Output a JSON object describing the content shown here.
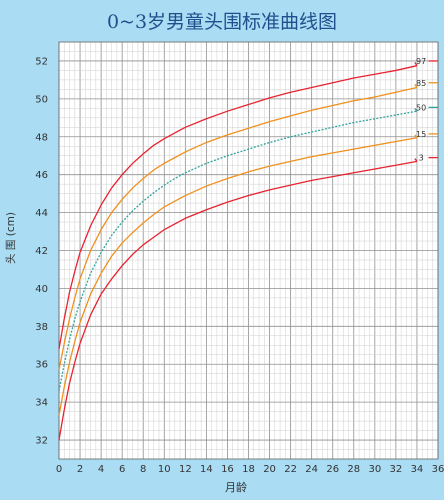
{
  "chart_data": {
    "type": "line",
    "title": "0~3岁男童头围标准曲线图",
    "xlabel": "月龄",
    "ylabel": "头 围 (cm)",
    "xlim": [
      0,
      36
    ],
    "ylim": [
      31,
      53
    ],
    "x_ticks": [
      0,
      2,
      4,
      6,
      8,
      10,
      12,
      14,
      16,
      18,
      20,
      22,
      24,
      26,
      28,
      30,
      32,
      34,
      36
    ],
    "y_ticks": [
      32,
      34,
      36,
      38,
      40,
      42,
      44,
      46,
      48,
      50,
      52
    ],
    "grid": true,
    "colors": {
      "background": "#aadcf4",
      "plot": "#ffffff",
      "title": "#1f4f8c",
      "axis_text": "#333333",
      "grid_minor": "#cfcfcf",
      "grid_major": "#8f8f8f"
    },
    "x": [
      0,
      0.5,
      1,
      1.5,
      2,
      3,
      4,
      5,
      6,
      7,
      8,
      9,
      10,
      11,
      12,
      14,
      16,
      18,
      20,
      22,
      24,
      26,
      28,
      30,
      32,
      34,
      36
    ],
    "series": [
      {
        "name": "97",
        "color": "#e8232f",
        "values": [
          36.8,
          38.4,
          39.8,
          40.9,
          41.9,
          43.3,
          44.4,
          45.3,
          46.0,
          46.6,
          47.1,
          47.55,
          47.9,
          48.2,
          48.5,
          48.95,
          49.35,
          49.7,
          50.05,
          50.35,
          50.6,
          50.85,
          51.1,
          51.3,
          51.5,
          51.75,
          52.0
        ]
      },
      {
        "name": "85",
        "color": "#f0901e",
        "values": [
          35.7,
          37.1,
          38.4,
          39.5,
          40.5,
          42.0,
          43.1,
          44.0,
          44.7,
          45.3,
          45.8,
          46.25,
          46.6,
          46.9,
          47.2,
          47.7,
          48.1,
          48.45,
          48.8,
          49.1,
          49.4,
          49.65,
          49.9,
          50.1,
          50.35,
          50.6,
          50.85
        ]
      },
      {
        "name": "50",
        "color": "#2fa39a",
        "dashed": true,
        "values": [
          34.6,
          36.0,
          37.3,
          38.4,
          39.3,
          40.8,
          41.9,
          42.8,
          43.5,
          44.1,
          44.6,
          45.05,
          45.45,
          45.8,
          46.1,
          46.6,
          47.0,
          47.35,
          47.7,
          48.0,
          48.25,
          48.5,
          48.75,
          48.95,
          49.15,
          49.35,
          49.55
        ]
      },
      {
        "name": "15",
        "color": "#f0901e",
        "values": [
          33.3,
          34.8,
          36.1,
          37.2,
          38.2,
          39.7,
          40.8,
          41.7,
          42.4,
          42.95,
          43.45,
          43.9,
          44.3,
          44.6,
          44.9,
          45.4,
          45.8,
          46.15,
          46.45,
          46.7,
          46.95,
          47.15,
          47.35,
          47.55,
          47.75,
          47.95,
          48.15
        ]
      },
      {
        "name": "3",
        "color": "#e8232f",
        "values": [
          32.0,
          33.6,
          35.0,
          36.1,
          37.1,
          38.6,
          39.7,
          40.5,
          41.2,
          41.8,
          42.3,
          42.7,
          43.1,
          43.4,
          43.7,
          44.15,
          44.55,
          44.9,
          45.2,
          45.45,
          45.7,
          45.9,
          46.1,
          46.3,
          46.5,
          46.7,
          46.9
        ]
      }
    ]
  }
}
